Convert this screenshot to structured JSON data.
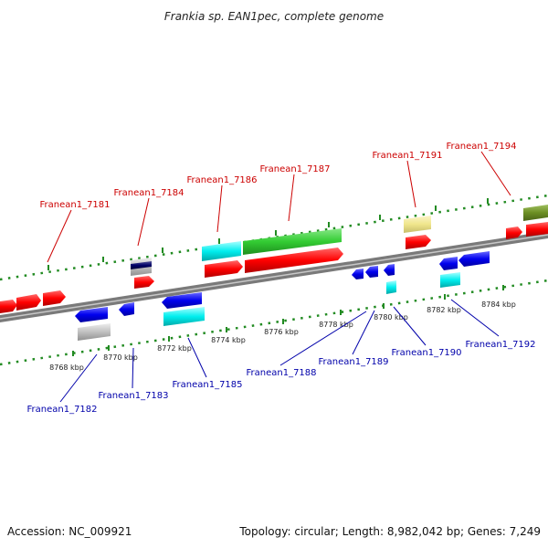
{
  "title": "Frankia sp. EAN1pec, complete genome",
  "footer": {
    "accession": "Accession: NC_009921",
    "summary": "Topology: circular; Length: 8,982,042 bp; Genes: 7,249"
  },
  "colors": {
    "forward_label": "#cc0000",
    "reverse_label": "#0000aa",
    "backbone": "#808080",
    "tick": "#228b22",
    "red": "#ff0000",
    "blue": "#0000ee",
    "cyan": "#00eeee",
    "green": "#33cc33",
    "olive": "#6b8e23",
    "khaki": "#f0e68c",
    "silver": "#c0c0c0",
    "navy": "#000066"
  },
  "kbp_labels": [
    "8768 kbp",
    "8770 kbp",
    "8772 kbp",
    "8774 kbp",
    "8776 kbp",
    "8778 kbp",
    "8780 kbp",
    "8782 kbp",
    "8784 kbp"
  ],
  "forward_labels": [
    "Franean1_7181",
    "Franean1_7184",
    "Franean1_7186",
    "Franean1_7187",
    "Franean1_7191",
    "Franean1_7194"
  ],
  "reverse_labels": [
    "Franean1_7182",
    "Franean1_7183",
    "Franean1_7185",
    "Franean1_7188",
    "Franean1_7189",
    "Franean1_7190",
    "Franean1_7192"
  ]
}
